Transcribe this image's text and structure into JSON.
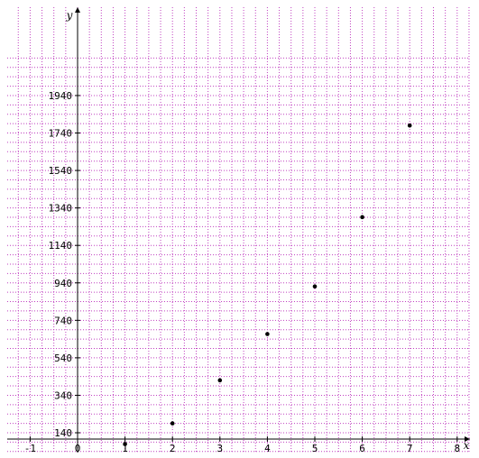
{
  "chart_data": {
    "type": "scatter",
    "title": "",
    "xlabel": "x",
    "ylabel": "y",
    "xlim": [
      -1.5,
      8.3
    ],
    "ylim": [
      70,
      2130
    ],
    "grid": true,
    "grid_color": "#c040c0",
    "point_color": "#000000",
    "x_ticks": [
      {
        "v": -1,
        "label": "-1"
      },
      {
        "v": 0,
        "label": "0"
      },
      {
        "v": 1,
        "label": "1"
      },
      {
        "v": 2,
        "label": "2"
      },
      {
        "v": 3,
        "label": "3"
      },
      {
        "v": 4,
        "label": "4"
      },
      {
        "v": 5,
        "label": "5"
      },
      {
        "v": 6,
        "label": "6"
      },
      {
        "v": 7,
        "label": "7"
      },
      {
        "v": 8,
        "label": "8"
      }
    ],
    "y_ticks": [
      {
        "v": 140,
        "label": "140"
      },
      {
        "v": 340,
        "label": "340"
      },
      {
        "v": 540,
        "label": "540"
      },
      {
        "v": 740,
        "label": "740"
      },
      {
        "v": 940,
        "label": "940"
      },
      {
        "v": 1140,
        "label": "1140"
      },
      {
        "v": 1340,
        "label": "1340"
      },
      {
        "v": 1540,
        "label": "1540"
      },
      {
        "v": 1740,
        "label": "1740"
      },
      {
        "v": 1940,
        "label": "1940"
      }
    ],
    "points": [
      {
        "x": 1,
        "y": 80
      },
      {
        "x": 2,
        "y": 190
      },
      {
        "x": 3,
        "y": 420
      },
      {
        "x": 4,
        "y": 667
      },
      {
        "x": 5,
        "y": 921
      },
      {
        "x": 6,
        "y": 1291
      },
      {
        "x": 7,
        "y": 1780
      }
    ]
  }
}
